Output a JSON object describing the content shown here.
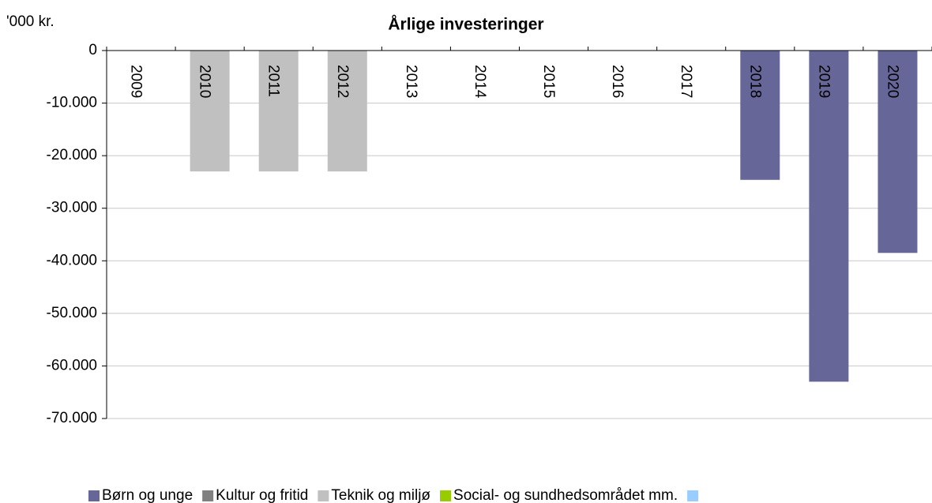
{
  "chart_data": {
    "type": "bar",
    "stacked": true,
    "title": "Årlige investeringer",
    "y_axis_label": "'000 kr.",
    "categories": [
      "2009",
      "2010",
      "2011",
      "2012",
      "2013",
      "2014",
      "2015",
      "2016",
      "2017",
      "2018",
      "2019",
      "2020"
    ],
    "series": [
      {
        "name": "Børn og unge",
        "color": "#666699",
        "values": [
          0,
          0,
          0,
          0,
          0,
          0,
          0,
          0,
          0,
          -24600,
          -63000,
          -38500
        ]
      },
      {
        "name": "Kultur og fritid",
        "color": "#808080",
        "values": [
          0,
          0,
          0,
          0,
          0,
          0,
          0,
          0,
          0,
          0,
          0,
          0
        ]
      },
      {
        "name": "Teknik og miljø",
        "color": "#c0c0c0",
        "values": [
          0,
          -23000,
          -23000,
          -23000,
          0,
          0,
          0,
          0,
          0,
          0,
          0,
          0
        ]
      },
      {
        "name": "Social- og sundhedsområdet mm.",
        "color": "#99cc00",
        "values": [
          0,
          0,
          0,
          0,
          0,
          0,
          0,
          0,
          0,
          0,
          0,
          0
        ]
      },
      {
        "name": null,
        "color": "#99ccff",
        "values": [
          0,
          0,
          0,
          0,
          0,
          0,
          0,
          0,
          0,
          0,
          0,
          0
        ]
      }
    ],
    "ylim": [
      -70000,
      0
    ],
    "yticks": [
      0,
      {
        "value": -10000,
        "label": "-10.000"
      },
      {
        "value": -20000,
        "label": "-20.000"
      },
      {
        "value": -30000,
        "label": "-30.000"
      },
      {
        "value": -40000,
        "label": "-40.000"
      },
      {
        "value": -50000,
        "label": "-50.000"
      },
      {
        "value": -60000,
        "label": "-60.000"
      },
      {
        "value": -70000,
        "label": "-70.000"
      }
    ],
    "grid": true,
    "legend": "bottom"
  }
}
